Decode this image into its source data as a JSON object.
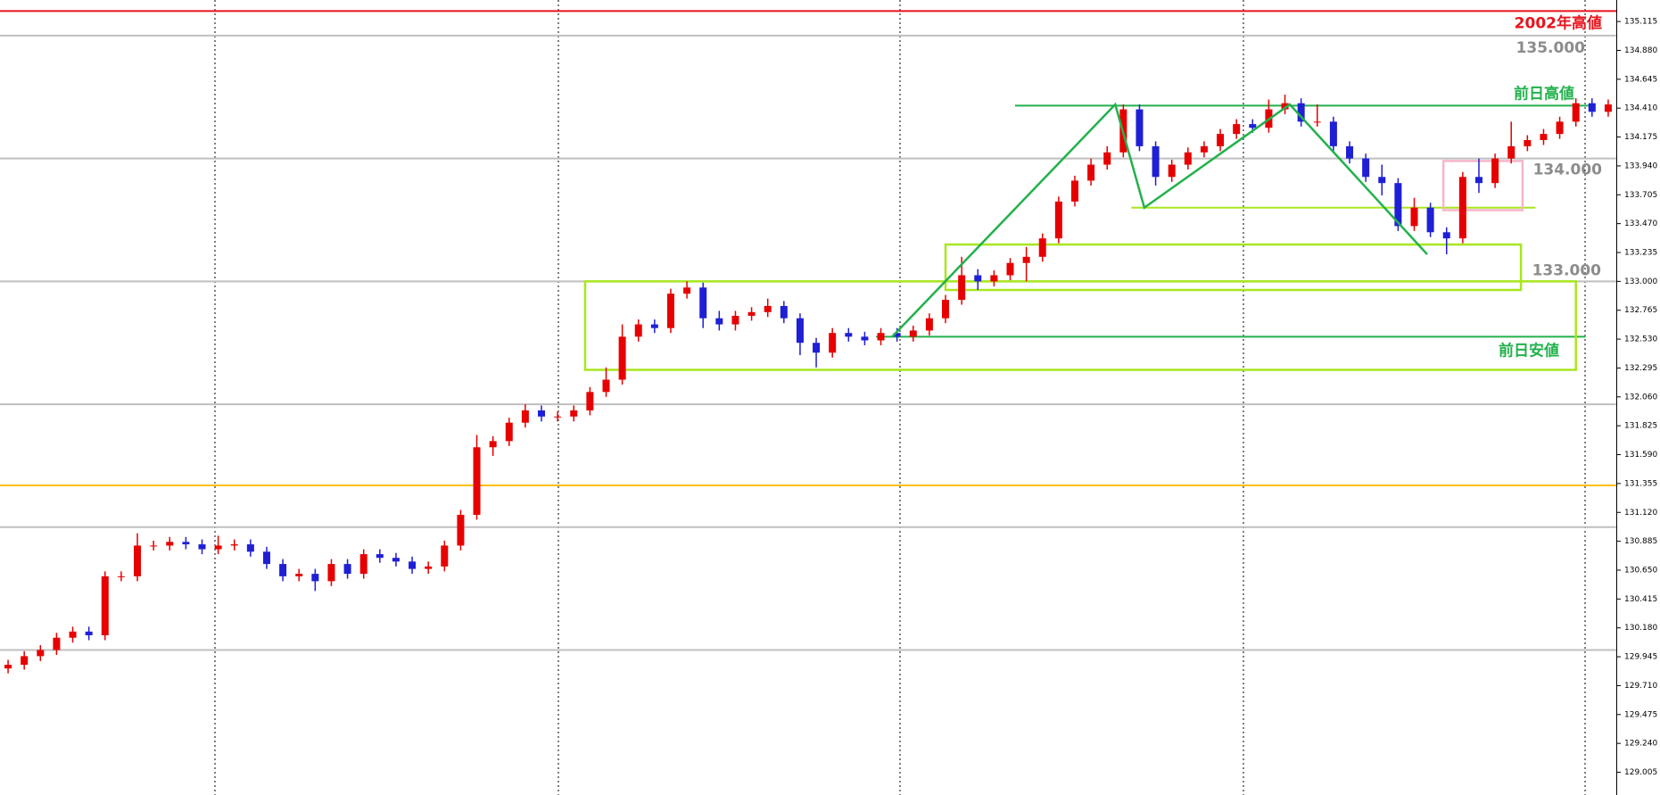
{
  "chart_data": {
    "type": "candlestick",
    "up_color": "#e60000",
    "down_color": "#1f1fd6",
    "ylim": [
      128.82,
      135.29
    ],
    "yticks": [
      135.115,
      {
        "value": 134.88,
        "label": "134.880"
      },
      134.645,
      {
        "value": 134.41,
        "label": "134.410"
      },
      134.175,
      {
        "value": 133.94,
        "label": "133.940"
      },
      133.705,
      {
        "value": 133.47,
        "label": "133.470"
      },
      133.235,
      {
        "value": 133.0,
        "label": "133.000"
      },
      132.765,
      {
        "value": 132.53,
        "label": "132.530"
      },
      132.295,
      {
        "value": 132.06,
        "label": "132.060"
      },
      131.825,
      {
        "value": 131.59,
        "label": "131.590"
      },
      131.355,
      {
        "value": 131.12,
        "label": "131.120"
      },
      130.885,
      {
        "value": 130.65,
        "label": "130.650"
      },
      130.415,
      {
        "value": 130.18,
        "label": "130.180"
      },
      129.945,
      {
        "value": 129.71,
        "label": "129.710"
      },
      129.475,
      {
        "value": 129.24,
        "label": "129.240"
      },
      129.005
    ],
    "open": [
      129.85,
      129.88,
      129.95,
      130.0,
      130.1,
      130.15,
      130.12,
      130.6,
      130.6,
      130.85,
      130.85,
      130.88,
      130.86,
      130.82,
      130.85,
      130.86,
      130.8,
      130.7,
      130.6,
      130.62,
      130.56,
      130.7,
      130.62,
      130.78,
      130.75,
      130.72,
      130.66,
      130.68,
      130.85,
      131.1,
      131.65,
      131.7,
      131.85,
      131.95,
      131.9,
      131.9,
      131.95,
      132.1,
      132.2,
      132.55,
      132.65,
      132.62,
      132.9,
      132.95,
      132.7,
      132.65,
      132.72,
      132.75,
      132.8,
      132.7,
      132.5,
      132.42,
      132.58,
      132.55,
      132.52,
      132.58,
      132.55,
      132.6,
      132.7,
      132.85,
      133.05,
      133.0,
      133.05,
      133.15,
      133.2,
      133.35,
      133.65,
      133.82,
      133.95,
      134.05,
      134.4,
      134.1,
      133.85,
      133.95,
      134.05,
      134.1,
      134.2,
      134.28,
      134.25,
      134.4,
      134.45,
      134.3,
      134.3,
      134.1,
      134.0,
      133.85,
      133.8,
      133.45,
      133.6,
      133.4,
      133.35,
      133.85,
      133.8,
      134.0,
      134.1,
      134.15,
      134.2,
      134.3,
      134.45,
      134.38
    ],
    "high": [
      129.92,
      129.99,
      130.04,
      130.14,
      130.19,
      130.19,
      130.64,
      130.64,
      130.95,
      130.89,
      130.92,
      130.92,
      130.9,
      130.93,
      130.9,
      130.9,
      130.84,
      130.74,
      130.66,
      130.66,
      130.74,
      130.74,
      130.82,
      130.82,
      130.79,
      130.76,
      130.72,
      130.89,
      131.14,
      131.75,
      131.74,
      131.89,
      132.0,
      131.99,
      131.94,
      131.99,
      132.14,
      132.3,
      132.65,
      132.69,
      132.69,
      132.94,
      133.0,
      132.99,
      132.76,
      132.76,
      132.79,
      132.86,
      132.84,
      132.74,
      132.54,
      132.62,
      132.62,
      132.59,
      132.62,
      132.62,
      132.64,
      132.74,
      132.89,
      133.2,
      133.1,
      133.09,
      133.19,
      133.28,
      133.39,
      133.69,
      133.86,
      134.0,
      134.1,
      134.44,
      134.44,
      134.14,
      133.99,
      134.09,
      134.14,
      134.24,
      134.32,
      134.32,
      134.48,
      134.52,
      134.49,
      134.44,
      134.34,
      134.14,
      134.04,
      133.95,
      133.84,
      133.68,
      133.64,
      133.44,
      133.89,
      134.0,
      134.04,
      134.3,
      134.19,
      134.24,
      134.34,
      134.49,
      134.49,
      134.48
    ],
    "low": [
      129.81,
      129.84,
      129.91,
      129.96,
      130.06,
      130.08,
      130.08,
      130.56,
      130.56,
      130.81,
      130.81,
      130.82,
      130.78,
      130.78,
      130.81,
      130.76,
      130.66,
      130.56,
      130.56,
      130.48,
      130.52,
      130.58,
      130.58,
      130.71,
      130.68,
      130.62,
      130.62,
      130.64,
      130.81,
      131.06,
      131.58,
      131.66,
      131.81,
      131.86,
      131.86,
      131.86,
      131.91,
      132.06,
      132.16,
      132.51,
      132.58,
      132.58,
      132.86,
      132.62,
      132.6,
      132.6,
      132.68,
      132.71,
      132.66,
      132.4,
      132.3,
      132.38,
      132.51,
      132.48,
      132.48,
      132.51,
      132.51,
      132.56,
      132.66,
      132.81,
      132.93,
      132.96,
      133.01,
      133.0,
      133.16,
      133.31,
      133.61,
      133.78,
      133.91,
      134.01,
      134.06,
      133.78,
      133.81,
      133.91,
      134.01,
      134.06,
      134.16,
      134.21,
      134.21,
      134.36,
      134.26,
      134.26,
      134.06,
      133.96,
      133.81,
      133.7,
      133.41,
      133.41,
      133.36,
      133.22,
      133.31,
      133.72,
      133.76,
      133.96,
      134.06,
      134.11,
      134.16,
      134.26,
      134.34,
      134.34
    ],
    "close": [
      129.88,
      129.95,
      130.0,
      130.1,
      130.15,
      130.12,
      130.6,
      130.6,
      130.85,
      130.85,
      130.88,
      130.86,
      130.82,
      130.85,
      130.86,
      130.8,
      130.7,
      130.6,
      130.62,
      130.56,
      130.7,
      130.62,
      130.78,
      130.75,
      130.72,
      130.66,
      130.68,
      130.85,
      131.1,
      131.65,
      131.7,
      131.85,
      131.95,
      131.9,
      131.9,
      131.95,
      132.1,
      132.2,
      132.55,
      132.65,
      132.62,
      132.9,
      132.95,
      132.7,
      132.65,
      132.72,
      132.75,
      132.8,
      132.7,
      132.5,
      132.42,
      132.58,
      132.55,
      132.52,
      132.58,
      132.55,
      132.6,
      132.7,
      132.85,
      133.05,
      133.0,
      133.05,
      133.15,
      133.2,
      133.35,
      133.65,
      133.82,
      133.95,
      134.05,
      134.4,
      134.1,
      133.85,
      133.95,
      134.05,
      134.1,
      134.2,
      134.28,
      134.25,
      134.4,
      134.45,
      134.3,
      134.3,
      134.1,
      134.0,
      133.85,
      133.8,
      133.45,
      133.6,
      133.4,
      133.35,
      133.85,
      133.8,
      134.0,
      134.1,
      134.15,
      134.2,
      134.3,
      134.45,
      134.38,
      134.44
    ],
    "levels": [
      {
        "price": 135.2,
        "color": "#e8141c",
        "label": "2002年高値"
      },
      {
        "price": 135.0,
        "color": "#bfbfbf",
        "label": "135.000"
      },
      {
        "price": 134.0,
        "color": "#bfbfbf",
        "label": "134.000"
      },
      {
        "price": 133.0,
        "color": "#bfbfbf",
        "label": "133.000"
      },
      {
        "price": 132.0,
        "color": "#bfbfbf"
      },
      {
        "price": 131.0,
        "color": "#bfbfbf"
      },
      {
        "price": 130.0,
        "color": "#bfbfbf"
      },
      {
        "price": 131.34,
        "color": "#ffc000"
      },
      {
        "price": 134.43,
        "color": "#22b14c",
        "label": "前日高値",
        "start": 62.8,
        "end": 98.3
      },
      {
        "price": 132.55,
        "color": "#22b14c",
        "label": "前日安値",
        "start": 54.2,
        "end": 98.1
      },
      {
        "price": 133.6,
        "color": "#a8e61d",
        "start": 70,
        "end": 95
      }
    ],
    "boxes": [
      {
        "start": 36.2,
        "end": 97.5,
        "top": 133.0,
        "bottom": 132.28,
        "color": "#a8e61d"
      },
      {
        "start": 58.5,
        "end": 94.1,
        "top": 133.3,
        "bottom": 132.93,
        "color": "#a8e61d"
      },
      {
        "start": 89.3,
        "end": 94.2,
        "top": 133.98,
        "bottom": 133.58,
        "color": "#f4b6c8"
      }
    ],
    "zigzag": {
      "color": "#22b14c",
      "x": [
        55.2,
        69.0,
        70.8,
        79.8,
        88.3
      ],
      "y": [
        132.55,
        134.44,
        133.6,
        134.44,
        133.22
      ]
    }
  }
}
